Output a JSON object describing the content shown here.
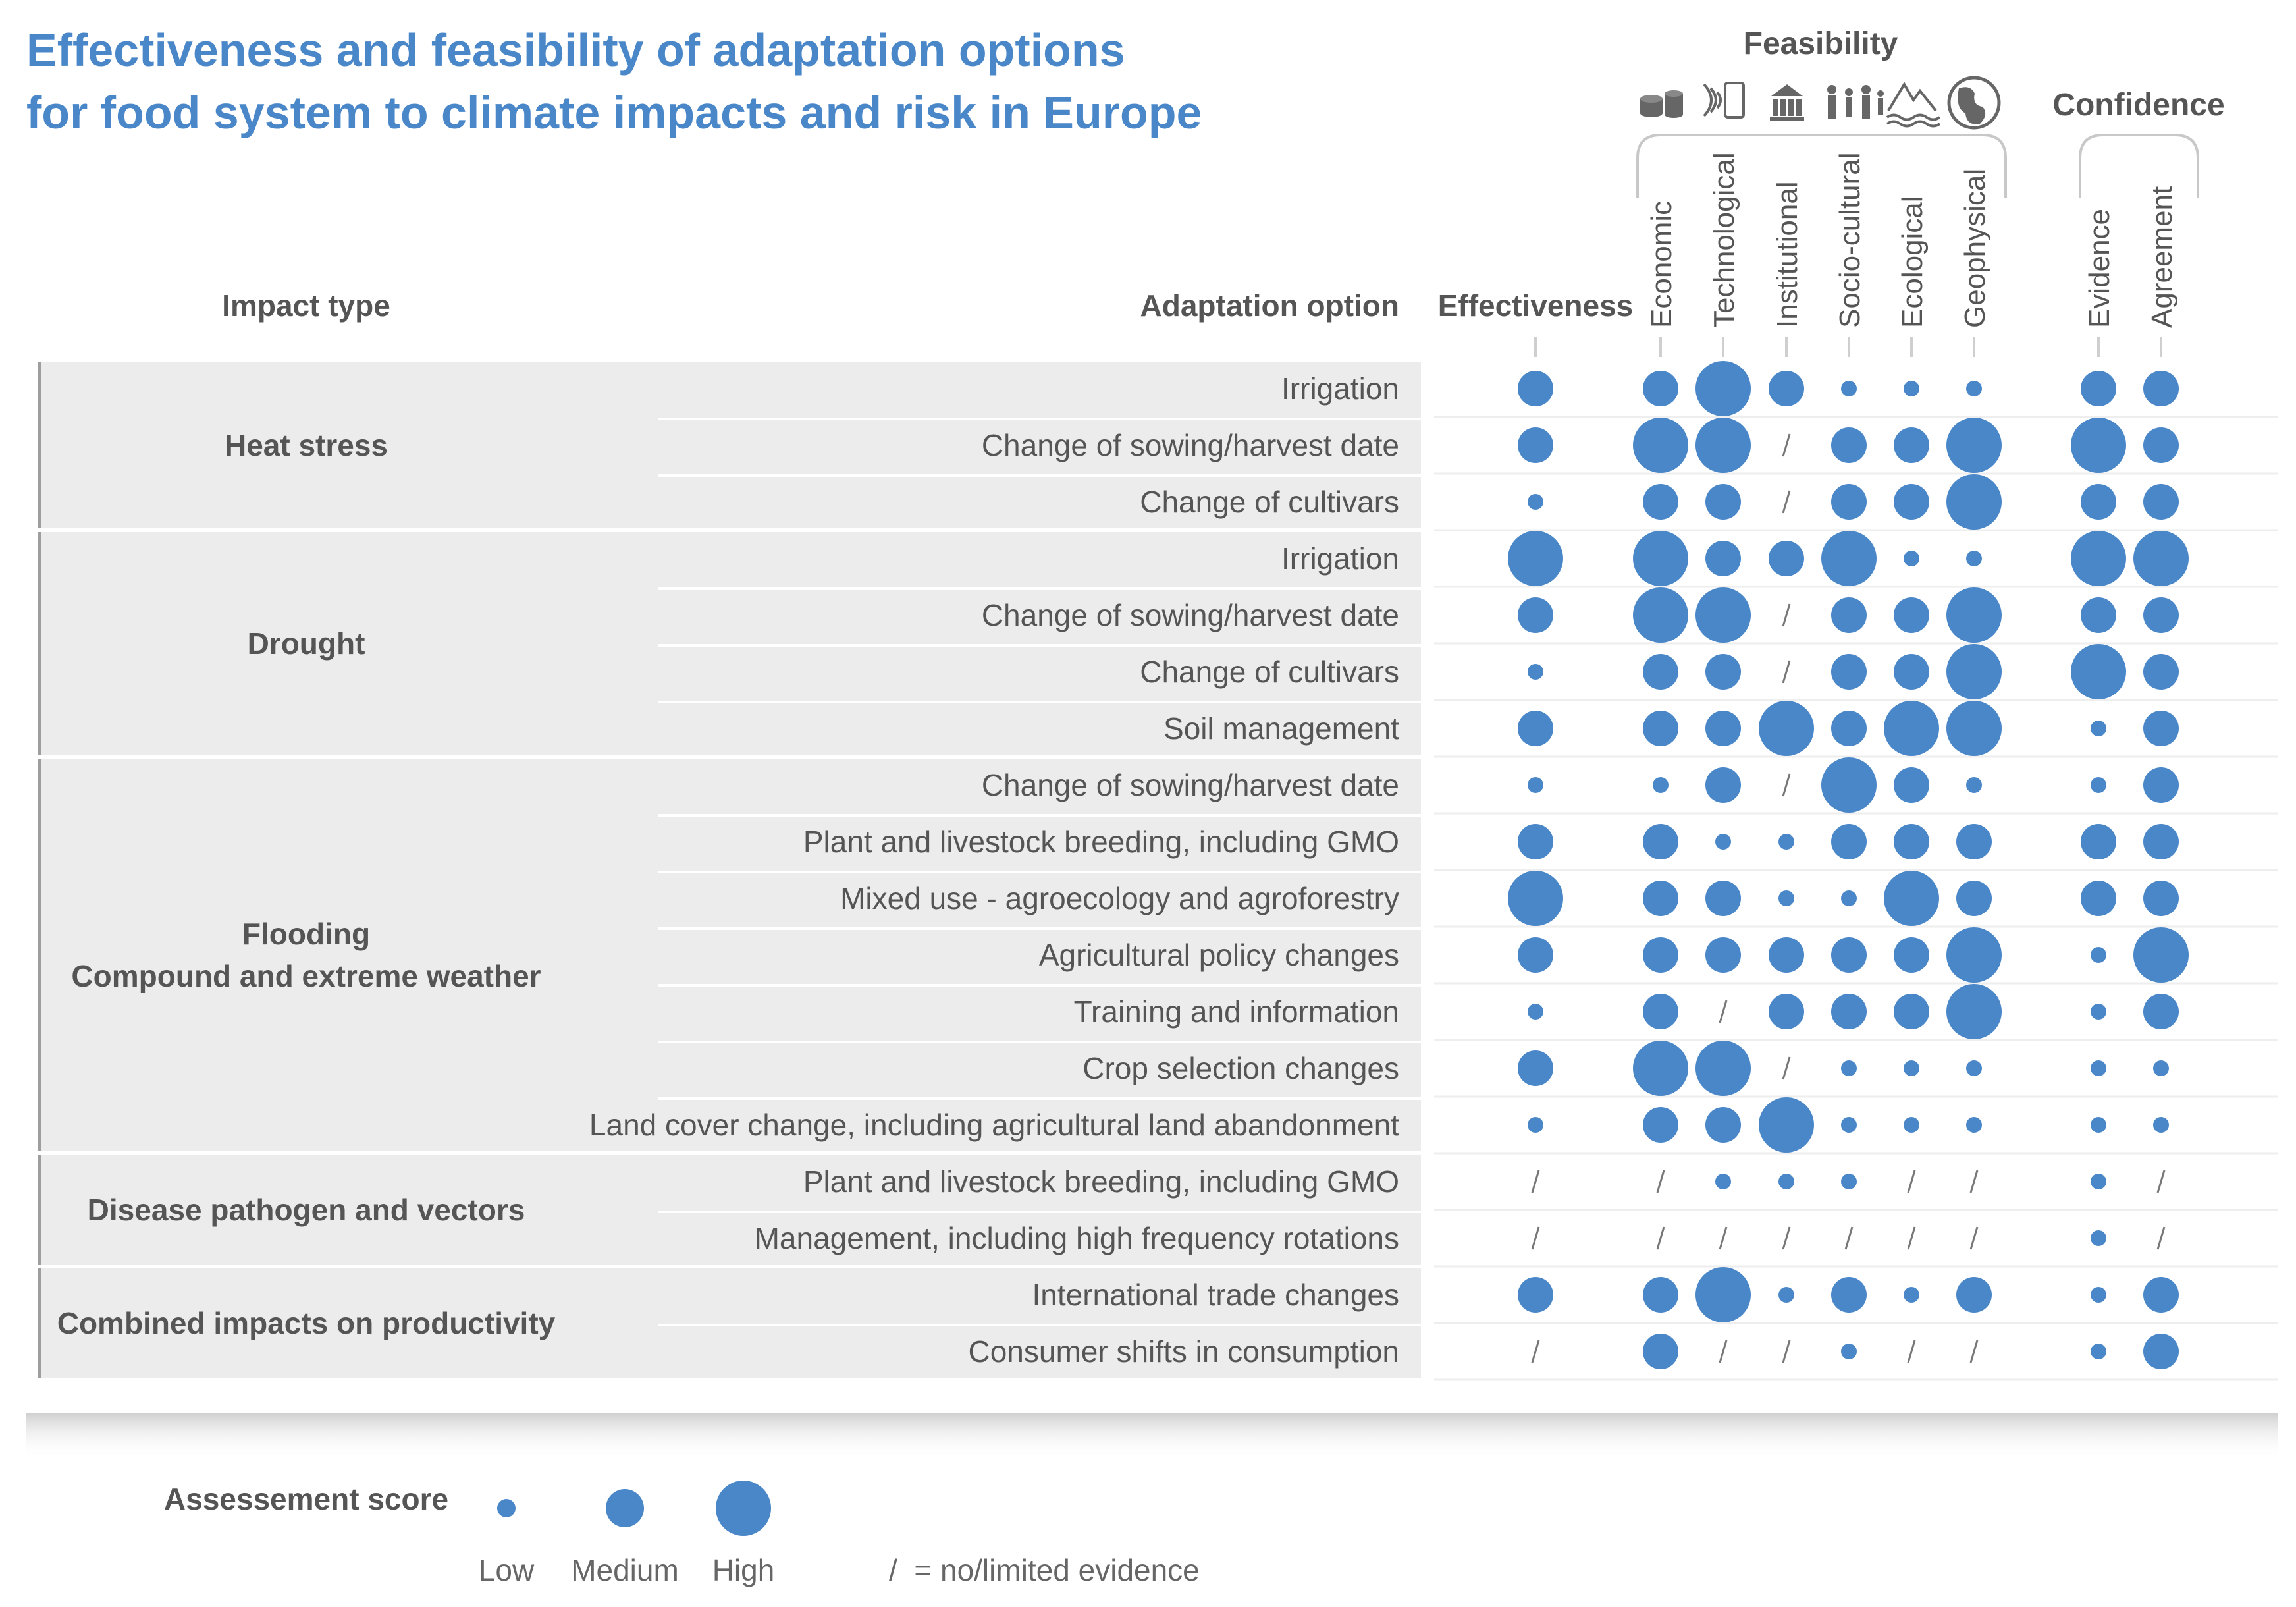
{
  "chart_data": {
    "type": "table",
    "title": [
      "Effectiveness and feasibility of adaptation options",
      "for food system to climate impacts and risk in Europe"
    ],
    "header": {
      "impact_type": "Impact type",
      "adaptation_option": "Adaptation option",
      "effectiveness": "Effectiveness",
      "feasibility": "Feasibility",
      "confidence": "Confidence",
      "feasibility_dims": [
        "Economic",
        "Technological",
        "Institutional",
        "Socio-cultural",
        "Ecological",
        "Geophysical"
      ],
      "feasibility_icons": [
        "coins-icon",
        "phone-signal-icon",
        "institution-building-icon",
        "people-icon",
        "ecosystem-icon",
        "globe-icon"
      ],
      "confidence_dims": [
        "Evidence",
        "Agreement"
      ]
    },
    "scale": {
      "L": "Low",
      "M": "Medium",
      "H": "High",
      "/": "no/limited evidence"
    },
    "groups": [
      {
        "impact": [
          "Heat stress"
        ],
        "rows": [
          {
            "option": "Irrigation",
            "scores": [
              "M",
              "M",
              "H",
              "M",
              "L",
              "L",
              "L",
              "M",
              "M"
            ]
          },
          {
            "option": "Change of sowing/harvest date",
            "scores": [
              "M",
              "H",
              "H",
              "/",
              "M",
              "M",
              "H",
              "H",
              "M"
            ]
          },
          {
            "option": "Change of cultivars",
            "scores": [
              "L",
              "M",
              "M",
              "/",
              "M",
              "M",
              "H",
              "M",
              "M"
            ]
          }
        ]
      },
      {
        "impact": [
          "Drought"
        ],
        "rows": [
          {
            "option": "Irrigation",
            "scores": [
              "H",
              "H",
              "M",
              "M",
              "H",
              "L",
              "L",
              "H",
              "H"
            ]
          },
          {
            "option": "Change of sowing/harvest date",
            "scores": [
              "M",
              "H",
              "H",
              "/",
              "M",
              "M",
              "H",
              "M",
              "M"
            ]
          },
          {
            "option": "Change of cultivars",
            "scores": [
              "L",
              "M",
              "M",
              "/",
              "M",
              "M",
              "H",
              "H",
              "M"
            ]
          },
          {
            "option": "Soil management",
            "scores": [
              "M",
              "M",
              "M",
              "H",
              "M",
              "H",
              "H",
              "L",
              "M"
            ]
          }
        ]
      },
      {
        "impact": [
          "Flooding",
          "Compound and extreme weather"
        ],
        "rows": [
          {
            "option": "Change of sowing/harvest date",
            "scores": [
              "L",
              "L",
              "M",
              "/",
              "H",
              "M",
              "L",
              "L",
              "M"
            ]
          },
          {
            "option": "Plant and livestock breeding, including GMO",
            "scores": [
              "M",
              "M",
              "L",
              "L",
              "M",
              "M",
              "M",
              "M",
              "M"
            ]
          },
          {
            "option": "Mixed use - agroecology and agroforestry",
            "scores": [
              "H",
              "M",
              "M",
              "L",
              "L",
              "H",
              "M",
              "M",
              "M"
            ]
          },
          {
            "option": "Agricultural policy changes",
            "scores": [
              "M",
              "M",
              "M",
              "M",
              "M",
              "M",
              "H",
              "L",
              "H"
            ]
          },
          {
            "option": "Training and information",
            "scores": [
              "L",
              "M",
              "/",
              "M",
              "M",
              "M",
              "H",
              "L",
              "M"
            ]
          },
          {
            "option": "Crop selection changes",
            "scores": [
              "M",
              "H",
              "H",
              "/",
              "L",
              "L",
              "L",
              "L",
              "L"
            ]
          },
          {
            "option": "Land cover change, including agricultural land abandonment",
            "scores": [
              "L",
              "M",
              "M",
              "H",
              "L",
              "L",
              "L",
              "L",
              "L"
            ]
          }
        ]
      },
      {
        "impact": [
          "Disease pathogen and vectors"
        ],
        "rows": [
          {
            "option": "Plant and livestock breeding, including GMO",
            "scores": [
              "/",
              "/",
              "L",
              "L",
              "L",
              "/",
              "/",
              "L",
              "/"
            ]
          },
          {
            "option": "Management, including high frequency rotations",
            "scores": [
              "/",
              "/",
              "/",
              "/",
              "/",
              "/",
              "/",
              "L",
              "/"
            ]
          }
        ]
      },
      {
        "impact": [
          "Combined impacts on productivity"
        ],
        "rows": [
          {
            "option": "International trade changes",
            "scores": [
              "M",
              "M",
              "H",
              "L",
              "M",
              "L",
              "M",
              "L",
              "M"
            ]
          },
          {
            "option": "Consumer shifts in consumption",
            "scores": [
              "/",
              "M",
              "/",
              "/",
              "L",
              "/",
              "/",
              "L",
              "M"
            ]
          }
        ]
      }
    ],
    "legend": {
      "title": "Assessement score",
      "labels": [
        "Low",
        "Medium",
        "High"
      ],
      "slash_note": "/  = no/limited evidence"
    },
    "colors": {
      "dot": "#4a87c9",
      "title": "#4a87c9",
      "text": "#555555",
      "band": "#ececec",
      "rule": "#d2d2d2"
    }
  }
}
